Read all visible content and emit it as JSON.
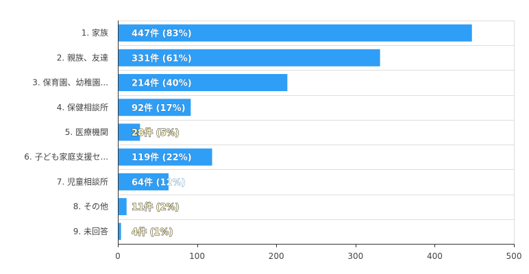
{
  "chart_data": {
    "type": "bar",
    "orientation": "horizontal",
    "categories": [
      "1. 家族",
      "2. 親族、友達",
      "3. 保育園、幼稚園...",
      "4. 保健相談所",
      "5. 医療機関",
      "6. 子ども家庭支援セ...",
      "7. 児童相談所",
      "8. その他",
      "9. 未回答"
    ],
    "values": [
      447,
      331,
      214,
      92,
      28,
      119,
      64,
      11,
      4
    ],
    "data_labels": [
      "447件 (83%)",
      "331件 (61%)",
      "214件 (40%)",
      "92件 (17%)",
      "28件 (5%)",
      "119件 (22%)",
      "64件 (12%)",
      "11件 (2%)",
      "4件 (1%)"
    ],
    "xlim": [
      0,
      500
    ],
    "x_ticks": [
      "0",
      "100",
      "200",
      "300",
      "400",
      "500"
    ],
    "grid": true,
    "colors": {
      "bar": "#2e9ef7",
      "label_light": "#fff7c2",
      "label_stroke": "#555555",
      "grid": "#dddddd",
      "axis": "#333333"
    }
  }
}
